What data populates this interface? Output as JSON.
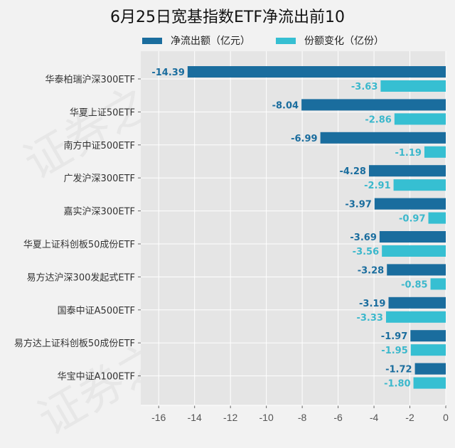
{
  "chart_data": {
    "type": "bar",
    "orientation": "horizontal",
    "title": "6月25日宽基指数ETF净流出前10",
    "categories": [
      "华泰柏瑞沪深300ETF",
      "华夏上证50ETF",
      "南方中证500ETF",
      "广发沪深300ETF",
      "嘉实沪深300ETF",
      "华夏上证科创板50成份ETF",
      "易方达沪深300发起式ETF",
      "国泰中证A500ETF",
      "易方达上证科创板50成份ETF",
      "华宝中证A100ETF"
    ],
    "series": [
      {
        "name": "净流出额（亿元）",
        "color": "#1a6d9e",
        "label_color": "#1a6d9e",
        "values": [
          -14.39,
          -8.04,
          -6.99,
          -4.28,
          -3.97,
          -3.69,
          -3.28,
          -3.19,
          -1.97,
          -1.72
        ],
        "labels": [
          "-14.39",
          "-8.04",
          "-6.99",
          "-4.28",
          "-3.97",
          "-3.69",
          "-3.28",
          "-3.19",
          "-1.97",
          "-1.72"
        ]
      },
      {
        "name": "份额变化（亿份）",
        "color": "#36bfd2",
        "label_color": "#3bb8cc",
        "values": [
          -3.63,
          -2.86,
          -1.19,
          -2.91,
          -0.97,
          -3.56,
          -0.85,
          -3.33,
          -1.95,
          -1.8
        ],
        "labels": [
          "-3.63",
          "-2.86",
          "-1.19",
          "-2.91",
          "-0.97",
          "-3.56",
          "-0.85",
          "-3.33",
          "-1.95",
          "-1.80"
        ]
      }
    ],
    "xlim": [
      -17,
      0
    ],
    "xticks": [
      -16,
      -14,
      -12,
      -10,
      -8,
      -6,
      -4,
      -2,
      0
    ],
    "xtick_labels": [
      "-16",
      "-14",
      "-12",
      "-10",
      "-8",
      "-6",
      "-4",
      "-2",
      "0"
    ],
    "xlabel": "",
    "ylabel": "",
    "grid": true,
    "legend_position": "top"
  },
  "watermark": "证券之星"
}
